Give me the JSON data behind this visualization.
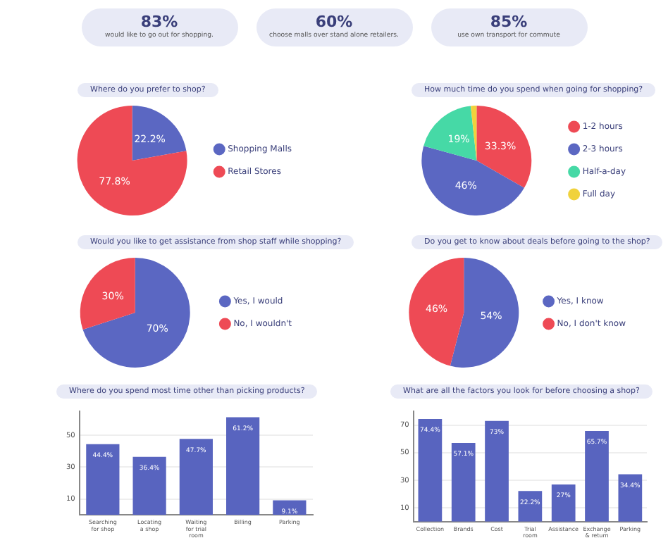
{
  "chart_data": [
    {
      "type": "other",
      "categories": [
        "would like to go out for shopping.",
        "choose malls over stand alone retailers.",
        "use own transport for commute"
      ],
      "values": [
        83,
        60,
        85
      ],
      "value_labels": [
        "83%",
        "60%",
        "85%"
      ]
    },
    {
      "type": "pie",
      "title": "Where do you prefer to shop?",
      "categories": [
        "Shopping Malls",
        "Retail Stores"
      ],
      "values": [
        22.2,
        77.8
      ],
      "colors": [
        "#5b67c2",
        "#ee4a55"
      ],
      "value_labels": [
        "22.2%",
        "77.8%"
      ],
      "legend": "right"
    },
    {
      "type": "pie",
      "title": "How much time do you spend when going for shopping?",
      "categories": [
        "1-2 hours",
        "2-3 hours",
        "Half-a-day",
        "Full day"
      ],
      "values": [
        33.3,
        46,
        19,
        1.7
      ],
      "colors": [
        "#ee4a55",
        "#5b67c2",
        "#46d9a6",
        "#f0d23c"
      ],
      "value_labels": [
        "33.3%",
        "46%",
        "19%",
        null
      ],
      "legend": "right"
    },
    {
      "type": "pie",
      "title": "Would you like to get assistance from shop staff while shopping?",
      "categories": [
        "Yes, I would",
        "No, I wouldn't"
      ],
      "values": [
        70,
        30
      ],
      "colors": [
        "#5b67c2",
        "#ee4a55"
      ],
      "value_labels": [
        "70%",
        "30%"
      ],
      "legend": "right"
    },
    {
      "type": "pie",
      "title": "Do you get to know about deals before going to the shop?",
      "categories": [
        "Yes, I know",
        "No, I don't know"
      ],
      "values": [
        54,
        46
      ],
      "colors": [
        "#5b67c2",
        "#ee4a55"
      ],
      "value_labels": [
        "54%",
        "46%"
      ],
      "legend": "right"
    },
    {
      "type": "bar",
      "title": "Where do you spend most time other than picking products?",
      "categories": [
        "Searching for shop",
        "Locating a shop",
        "Waiting for trial room",
        "Billing",
        "Parking"
      ],
      "values": [
        44.4,
        36.4,
        47.7,
        61.2,
        9.1
      ],
      "color": "#5864bf",
      "value_labels": [
        "44.4%",
        "36.4%",
        "47.7%",
        "61.2%",
        "9.1%"
      ],
      "ylim": [
        0,
        65
      ],
      "yticks": [
        10,
        30,
        50
      ],
      "grid": "y"
    },
    {
      "type": "bar",
      "title": "What are all the factors you look for before choosing a shop?",
      "categories": [
        "Collection",
        "Brands",
        "Cost",
        "Trial room",
        "Assistance",
        "Exchange & return",
        "Parking"
      ],
      "values": [
        74.4,
        57.1,
        73,
        22.2,
        27,
        65.7,
        34.4
      ],
      "color": "#5864bf",
      "value_labels": [
        "74.4%",
        "57.1%",
        "73%",
        "22.2%",
        "27%",
        "65.7%",
        "34.4%"
      ],
      "ylim": [
        0,
        80
      ],
      "yticks": [
        10,
        30,
        50,
        70
      ],
      "grid": "y"
    }
  ]
}
